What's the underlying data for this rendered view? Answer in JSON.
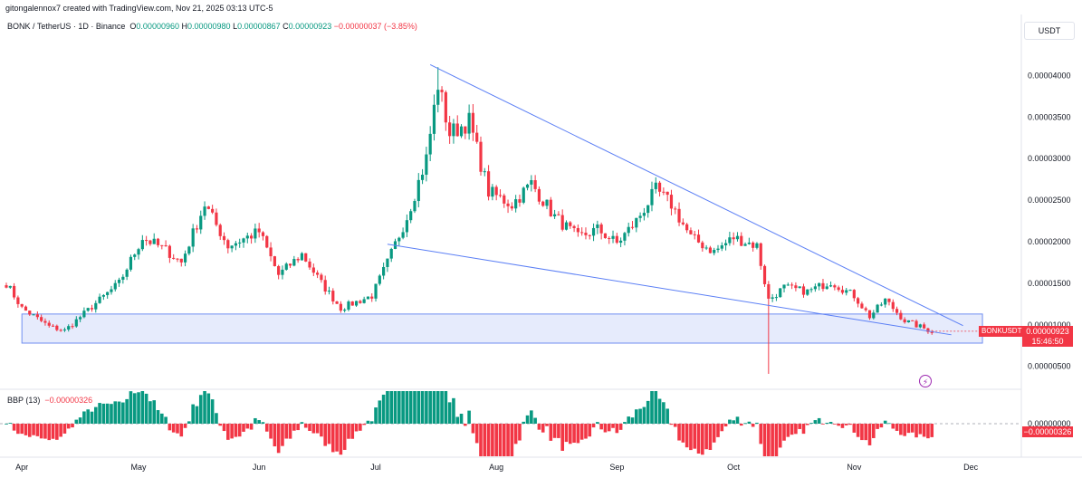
{
  "header": {
    "credit": "gitongalennox7 created with TradingView.com, Nov 21, 2025 03:13 UTC-5",
    "symbol": "BONK / TetherUS · 1D · Binance",
    "open_label": "O",
    "open": "0.00000960",
    "high_label": "H",
    "high": "0.00000980",
    "low_label": "L",
    "low": "0.00000867",
    "close_label": "C",
    "close": "0.00000923",
    "change": "−0.00000037 (−3.85%)",
    "unit": "USDT"
  },
  "tags": {
    "symbol": "BONKUSDT",
    "last_price": "0.00000923",
    "countdown": "15:46:50",
    "bbp_value": "−0.00000326"
  },
  "indicator": {
    "name": "BBP (13)",
    "value": "−0.00000326"
  },
  "colors": {
    "up": "#089981",
    "down": "#f23645",
    "trendline": "#5b7ff5",
    "zone_fill": "#dbe3fb",
    "zone_border": "#6f8ef0"
  },
  "chart_data": {
    "type": "candlestick",
    "symbol": "BONK / TetherUS",
    "interval": "1D",
    "exchange": "Binance",
    "unit": "USDT",
    "x_ticks": [
      "Apr",
      "May",
      "Jun",
      "Jul",
      "Aug",
      "Sep",
      "Oct",
      "Nov",
      "Dec"
    ],
    "y_ticks": [
      "0.00000500",
      "0.00001000",
      "0.00001500",
      "0.00002000",
      "0.00002500",
      "0.00003000",
      "0.00003500",
      "0.00004000"
    ],
    "y_range": [
      2.5e-06,
      4.7e-06
    ],
    "close_path": [
      {
        "date": "2025-03-28",
        "close": 1.5e-05
      },
      {
        "date": "2025-04-01",
        "close": 1.2e-05
      },
      {
        "date": "2025-04-08",
        "close": 9.8e-06
      },
      {
        "date": "2025-04-12",
        "close": 9.3e-06
      },
      {
        "date": "2025-04-20",
        "close": 1.26e-05
      },
      {
        "date": "2025-04-26",
        "close": 1.5e-05
      },
      {
        "date": "2025-05-02",
        "close": 2.05e-05
      },
      {
        "date": "2025-05-08",
        "close": 1.9e-05
      },
      {
        "date": "2025-05-12",
        "close": 1.75e-05
      },
      {
        "date": "2025-05-18",
        "close": 2.45e-05
      },
      {
        "date": "2025-05-24",
        "close": 1.95e-05
      },
      {
        "date": "2025-06-01",
        "close": 2.12e-05
      },
      {
        "date": "2025-06-06",
        "close": 1.6e-05
      },
      {
        "date": "2025-06-12",
        "close": 1.85e-05
      },
      {
        "date": "2025-06-17",
        "close": 1.5e-05
      },
      {
        "date": "2025-06-22",
        "close": 1.2e-05
      },
      {
        "date": "2025-06-30",
        "close": 1.35e-05
      },
      {
        "date": "2025-07-04",
        "close": 1.75e-05
      },
      {
        "date": "2025-07-09",
        "close": 2.3e-05
      },
      {
        "date": "2025-07-14",
        "close": 3e-05
      },
      {
        "date": "2025-07-17",
        "close": 3.9e-05
      },
      {
        "date": "2025-07-20",
        "close": 3.3e-05
      },
      {
        "date": "2025-07-25",
        "close": 3.45e-05
      },
      {
        "date": "2025-07-30",
        "close": 2.6e-05
      },
      {
        "date": "2025-08-05",
        "close": 2.45e-05
      },
      {
        "date": "2025-08-10",
        "close": 2.7e-05
      },
      {
        "date": "2025-08-16",
        "close": 2.3e-05
      },
      {
        "date": "2025-08-22",
        "close": 2.05e-05
      },
      {
        "date": "2025-08-27",
        "close": 2.15e-05
      },
      {
        "date": "2025-09-01",
        "close": 1.98e-05
      },
      {
        "date": "2025-09-06",
        "close": 2.25e-05
      },
      {
        "date": "2025-09-11",
        "close": 2.62e-05
      },
      {
        "date": "2025-09-15",
        "close": 2.45e-05
      },
      {
        "date": "2025-09-20",
        "close": 2.05e-05
      },
      {
        "date": "2025-09-26",
        "close": 1.88e-05
      },
      {
        "date": "2025-10-01",
        "close": 2.05e-05
      },
      {
        "date": "2025-10-07",
        "close": 1.95e-05
      },
      {
        "date": "2025-10-10",
        "close": 1.3e-05
      },
      {
        "date": "2025-10-14",
        "close": 1.45e-05
      },
      {
        "date": "2025-10-20",
        "close": 1.4e-05
      },
      {
        "date": "2025-10-26",
        "close": 1.52e-05
      },
      {
        "date": "2025-11-01",
        "close": 1.35e-05
      },
      {
        "date": "2025-11-05",
        "close": 1.1e-05
      },
      {
        "date": "2025-11-09",
        "close": 1.3e-05
      },
      {
        "date": "2025-11-14",
        "close": 1.05e-05
      },
      {
        "date": "2025-11-21",
        "close": 9.2e-06
      }
    ],
    "events": [
      {
        "date": "2025-10-10",
        "low": 4.1e-06,
        "note": "flash-crash wick"
      },
      {
        "date": "2025-07-17",
        "high": 4.1e-05
      }
    ],
    "drawings": [
      {
        "kind": "trendline",
        "from": {
          "date": "2025-07-15",
          "price": 4.13e-05
        },
        "to": {
          "date": "2025-11-29",
          "price": 9.9e-06
        }
      },
      {
        "kind": "trendline",
        "from": {
          "date": "2025-07-04",
          "price": 1.97e-05
        },
        "to": {
          "date": "2025-11-26",
          "price": 8.8e-06
        }
      },
      {
        "kind": "zone",
        "from_date": "2025-04-01",
        "to_date": "2025-12-04",
        "top": 1.13e-05,
        "bottom": 7.8e-06
      }
    ],
    "last_price": 9.23e-06,
    "indicator": {
      "name": "BBP (13)",
      "value": -3.26e-06,
      "y_ticks": [
        "0.00000000"
      ]
    }
  }
}
